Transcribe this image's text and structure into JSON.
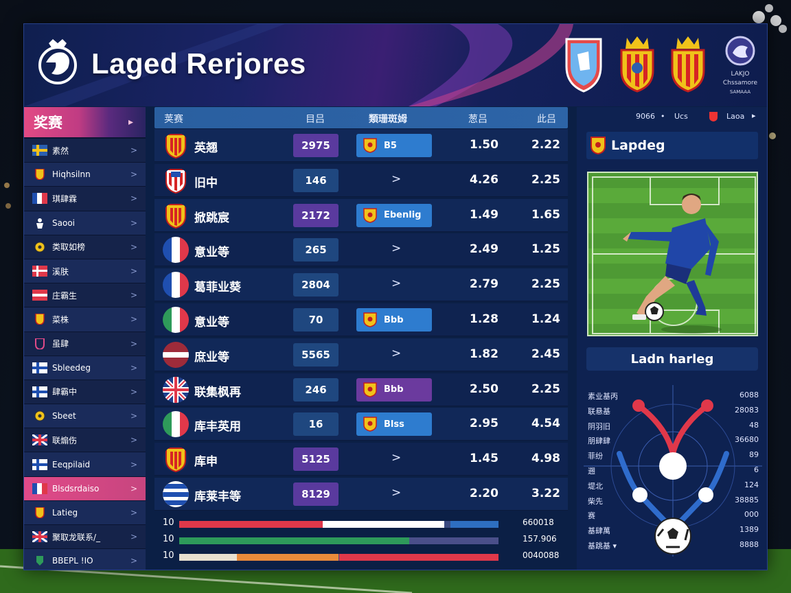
{
  "app": {
    "title": "Laged Rerjores"
  },
  "brand": {
    "line1": "LAKJO",
    "line2": "Chssamore",
    "line3": "SAMAAA"
  },
  "sidebar": {
    "header": "奖赛",
    "header_arrow": "▸",
    "items": [
      {
        "label": "素然",
        "icon": "flag-sweden-icon"
      },
      {
        "label": "Hiqhsilnn",
        "icon": "crest-icon"
      },
      {
        "label": "琪肆霖",
        "icon": "flag-france-icon"
      },
      {
        "label": "Saooi",
        "icon": "player-icon"
      },
      {
        "label": "类取如榜",
        "icon": "ball-icon"
      },
      {
        "label": "溪肤",
        "icon": "flag-denmark-icon"
      },
      {
        "label": "庄霸生",
        "icon": "flag-red-icon"
      },
      {
        "label": "菜株",
        "icon": "crest-icon"
      },
      {
        "label": "虽肆",
        "icon": "shield-icon"
      },
      {
        "label": "Sbleedeg",
        "icon": "flag-finland-icon"
      },
      {
        "label": "肆霸中",
        "icon": "flag-finland-icon"
      },
      {
        "label": "Sbeet",
        "icon": "ball-icon"
      },
      {
        "label": "联煽伤",
        "icon": "flag-uk-icon"
      },
      {
        "label": "Eeqpilaid",
        "icon": "flag-finland-icon"
      },
      {
        "label": "Blsdsrdaiso",
        "icon": "flag-france-icon"
      },
      {
        "label": "Latieg",
        "icon": "crest-icon"
      },
      {
        "label": "聚取龙联系/_",
        "icon": "flag-uk-icon"
      },
      {
        "label": "BBEPL !IO",
        "icon": "badge-icon"
      }
    ]
  },
  "table": {
    "headers": [
      "荚赛",
      "目吕",
      "類珊斑姆",
      "葱吕",
      "此吕"
    ],
    "rows": [
      {
        "name": "英翘",
        "flag": "crest-yellow",
        "score": "2975",
        "score_style": "purple",
        "pill": "B5",
        "pill_style": "blue",
        "v1": "1.50",
        "v2": "2.22"
      },
      {
        "name": "旧中",
        "flag": "crest-red",
        "score": "146",
        "score_style": "blue",
        "pill": "",
        "pill_style": "",
        "v1": "4.26",
        "v2": "2.25"
      },
      {
        "name": "掀跳宸",
        "flag": "crest-yellow",
        "score": "2172",
        "score_style": "purple",
        "pill": "Ebenlig",
        "pill_style": "blue",
        "v1": "1.49",
        "v2": "1.65"
      },
      {
        "name": "意业等",
        "flag": "france",
        "score": "265",
        "score_style": "blue",
        "pill": "",
        "pill_style": "",
        "v1": "2.49",
        "v2": "1.25"
      },
      {
        "name": "葛菲业葵",
        "flag": "france",
        "score": "2804",
        "score_style": "blue",
        "pill": "",
        "pill_style": "",
        "v1": "2.79",
        "v2": "2.25"
      },
      {
        "name": "意业等",
        "flag": "italy",
        "score": "70",
        "score_style": "blue",
        "pill": "Bbb",
        "pill_style": "blue",
        "v1": "1.28",
        "v2": "1.24"
      },
      {
        "name": "庶业等",
        "flag": "latvia",
        "score": "5565",
        "score_style": "blue",
        "pill": "",
        "pill_style": "",
        "v1": "1.82",
        "v2": "2.45"
      },
      {
        "name": "联集枫再",
        "flag": "uk",
        "score": "246",
        "score_style": "blue",
        "pill": "Bbb",
        "pill_style": "purple",
        "v1": "2.50",
        "v2": "2.25"
      },
      {
        "name": "库丰英用",
        "flag": "italy",
        "score": "16",
        "score_style": "blue",
        "pill": "Blss",
        "pill_style": "blue",
        "v1": "2.95",
        "v2": "4.54"
      },
      {
        "name": "库申",
        "flag": "crest-yellow",
        "score": "5125",
        "score_style": "purple",
        "pill": "",
        "pill_style": "",
        "v1": "1.45",
        "v2": "4.98"
      },
      {
        "name": "库莱丰等",
        "flag": "blue-stripes",
        "score": "8129",
        "score_style": "purple",
        "pill": "",
        "pill_style": "",
        "v1": "2.20",
        "v2": "3.22"
      }
    ],
    "caret": ">"
  },
  "bars": [
    {
      "label": "10",
      "value": "660018",
      "segments": [
        {
          "color": "#e0384a",
          "from": 0.0,
          "to": 0.45
        },
        {
          "color": "#ffffff",
          "from": 0.45,
          "to": 0.83
        },
        {
          "color": "#2e6fc0",
          "from": 0.85,
          "to": 1.0
        }
      ]
    },
    {
      "label": "10",
      "value": "157.906",
      "segments": [
        {
          "color": "#2e9a5a",
          "from": 0.0,
          "to": 0.72
        },
        {
          "color": "#4a4f8a",
          "from": 0.72,
          "to": 1.0
        }
      ]
    },
    {
      "label": "10",
      "value": "0040088",
      "segments": [
        {
          "color": "#e8e0d0",
          "from": 0.0,
          "to": 0.18
        },
        {
          "color": "#e98a3a",
          "from": 0.18,
          "to": 0.5
        },
        {
          "color": "#e0384a",
          "from": 0.5,
          "to": 1.0
        }
      ]
    }
  ],
  "right": {
    "top_labels": [
      "9066",
      "•",
      "Ucs",
      "Laoa",
      "▸"
    ],
    "card_title": "Lapdeg",
    "button": "Ladn harleg",
    "stats": [
      {
        "label": "素业基丙",
        "value": "6088"
      },
      {
        "label": "联悬基",
        "value": "28083"
      },
      {
        "label": "阴羽旧",
        "value": "48"
      },
      {
        "label": "朋肆肆",
        "value": "36680"
      },
      {
        "label": "菲纷",
        "value": "89"
      },
      {
        "label": "遡",
        "value": "6"
      },
      {
        "label": "堤北",
        "value": "124"
      },
      {
        "label": "柴先",
        "value": "38885"
      },
      {
        "label": "赛",
        "value": "000"
      },
      {
        "label": "基肆萬",
        "value": "1389"
      },
      {
        "label": "基跳基 ▾",
        "value": "8888"
      }
    ]
  },
  "colors": {
    "accent_pink": "#e24a84",
    "panel": "#0b1f45",
    "table_header": "#2a5fa0",
    "purple": "#5a3a9e"
  }
}
